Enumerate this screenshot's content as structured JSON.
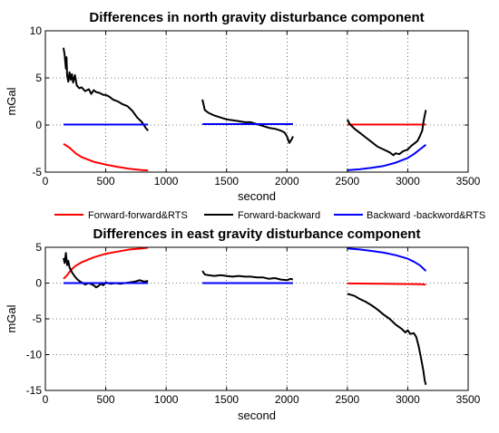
{
  "chart_data": [
    {
      "type": "line",
      "title": "Differences in north gravity disturbance component",
      "xlabel": "second",
      "ylabel": "mGal",
      "xlim": [
        0,
        3500
      ],
      "ylim": [
        -5,
        10
      ],
      "xticks": [
        0,
        500,
        1000,
        1500,
        2000,
        2500,
        3000,
        3500
      ],
      "yticks": [
        -5,
        0,
        5,
        10
      ],
      "xtick_labels": [
        "0",
        "500",
        "1000",
        "1500",
        "2000",
        "2500",
        "3000",
        "3500"
      ],
      "ytick_labels": [
        "-5",
        "0",
        "5",
        "10"
      ],
      "grid": true,
      "series": [
        {
          "name": "Forward-forward&RTS",
          "color": "#ff0000",
          "segments": [
            [
              [
                150,
                -2.0
              ],
              [
                200,
                -2.4
              ],
              [
                250,
                -3.0
              ],
              [
                300,
                -3.4
              ],
              [
                400,
                -3.9
              ],
              [
                500,
                -4.2
              ],
              [
                600,
                -4.45
              ],
              [
                700,
                -4.65
              ],
              [
                800,
                -4.78
              ],
              [
                850,
                -4.82
              ]
            ],
            [
              [
                2500,
                0.05
              ],
              [
                2800,
                0.05
              ],
              [
                3100,
                0.05
              ],
              [
                3150,
                0.05
              ]
            ]
          ]
        },
        {
          "name": "Forward-backward",
          "color": "#000000",
          "segments": [
            [
              [
                150,
                8.2
              ],
              [
                160,
                7.4
              ],
              [
                170,
                6.0
              ],
              [
                175,
                7.2
              ],
              [
                180,
                5.2
              ],
              [
                190,
                4.6
              ],
              [
                200,
                5.6
              ],
              [
                210,
                4.8
              ],
              [
                220,
                5.4
              ],
              [
                230,
                4.5
              ],
              [
                245,
                5.3
              ],
              [
                260,
                4.2
              ],
              [
                280,
                3.9
              ],
              [
                300,
                4.0
              ],
              [
                330,
                3.6
              ],
              [
                360,
                3.8
              ],
              [
                380,
                3.3
              ],
              [
                400,
                3.7
              ],
              [
                420,
                3.5
              ],
              [
                450,
                3.4
              ],
              [
                480,
                3.2
              ],
              [
                500,
                3.2
              ],
              [
                530,
                3.0
              ],
              [
                560,
                2.7
              ],
              [
                600,
                2.5
              ],
              [
                640,
                2.2
              ],
              [
                680,
                2.0
              ],
              [
                720,
                1.5
              ],
              [
                760,
                0.8
              ],
              [
                800,
                0.3
              ],
              [
                830,
                -0.3
              ],
              [
                850,
                -0.6
              ]
            ],
            [
              [
                1300,
                2.7
              ],
              [
                1320,
                1.6
              ],
              [
                1350,
                1.3
              ],
              [
                1400,
                1.0
              ],
              [
                1450,
                0.8
              ],
              [
                1500,
                0.6
              ],
              [
                1550,
                0.5
              ],
              [
                1600,
                0.4
              ],
              [
                1650,
                0.3
              ],
              [
                1700,
                0.3
              ],
              [
                1750,
                0.1
              ],
              [
                1800,
                -0.1
              ],
              [
                1850,
                -0.3
              ],
              [
                1900,
                -0.4
              ],
              [
                1950,
                -0.6
              ],
              [
                1980,
                -0.8
              ],
              [
                2000,
                -1.2
              ],
              [
                2020,
                -1.9
              ],
              [
                2040,
                -1.5
              ],
              [
                2050,
                -1.2
              ]
            ],
            [
              [
                2500,
                0.6
              ],
              [
                2520,
                0.1
              ],
              [
                2560,
                -0.4
              ],
              [
                2600,
                -0.8
              ],
              [
                2650,
                -1.3
              ],
              [
                2700,
                -1.8
              ],
              [
                2750,
                -2.3
              ],
              [
                2800,
                -2.6
              ],
              [
                2850,
                -2.9
              ],
              [
                2880,
                -3.2
              ],
              [
                2900,
                -3.0
              ],
              [
                2930,
                -3.1
              ],
              [
                2960,
                -2.8
              ],
              [
                3000,
                -2.6
              ],
              [
                3030,
                -2.2
              ],
              [
                3060,
                -1.9
              ],
              [
                3080,
                -1.7
              ],
              [
                3100,
                -1.2
              ],
              [
                3120,
                -0.6
              ],
              [
                3130,
                0.3
              ],
              [
                3140,
                1.0
              ],
              [
                3150,
                1.6
              ]
            ]
          ]
        },
        {
          "name": "Backward -backword&RTS",
          "color": "#0000ff",
          "segments": [
            [
              [
                150,
                0.05
              ],
              [
                500,
                0.05
              ],
              [
                850,
                0.05
              ]
            ],
            [
              [
                1300,
                0.1
              ],
              [
                1700,
                0.1
              ],
              [
                2050,
                0.1
              ]
            ],
            [
              [
                2500,
                -4.8
              ],
              [
                2600,
                -4.7
              ],
              [
                2700,
                -4.55
              ],
              [
                2800,
                -4.35
              ],
              [
                2900,
                -4.0
              ],
              [
                3000,
                -3.5
              ],
              [
                3050,
                -3.1
              ],
              [
                3100,
                -2.6
              ],
              [
                3150,
                -2.1
              ]
            ]
          ]
        }
      ]
    },
    {
      "type": "line",
      "title": "Differences in east gravity disturbance component",
      "xlabel": "second",
      "ylabel": "mGal",
      "xlim": [
        0,
        3500
      ],
      "ylim": [
        -15,
        5
      ],
      "xticks": [
        0,
        500,
        1000,
        1500,
        2000,
        2500,
        3000,
        3500
      ],
      "yticks": [
        -15,
        -10,
        -5,
        0,
        5
      ],
      "xtick_labels": [
        "0",
        "500",
        "1000",
        "1500",
        "2000",
        "2500",
        "3000",
        "3500"
      ],
      "ytick_labels": [
        "-15",
        "-10",
        "-5",
        "0",
        "5"
      ],
      "grid": true,
      "series": [
        {
          "name": "Forward-forward&RTS",
          "color": "#ff0000",
          "segments": [
            [
              [
                150,
                0.6
              ],
              [
                180,
                1.1
              ],
              [
                210,
                1.8
              ],
              [
                250,
                2.4
              ],
              [
                300,
                2.9
              ],
              [
                400,
                3.6
              ],
              [
                500,
                4.1
              ],
              [
                600,
                4.4
              ],
              [
                700,
                4.7
              ],
              [
                800,
                4.85
              ],
              [
                850,
                4.95
              ]
            ],
            [
              [
                2500,
                -0.05
              ],
              [
                2800,
                -0.1
              ],
              [
                3100,
                -0.15
              ],
              [
                3150,
                -0.2
              ]
            ]
          ]
        },
        {
          "name": "Forward-backward",
          "color": "#000000",
          "segments": [
            [
              [
                150,
                3.5
              ],
              [
                160,
                2.8
              ],
              [
                170,
                4.2
              ],
              [
                180,
                2.5
              ],
              [
                190,
                3.1
              ],
              [
                200,
                2.2
              ],
              [
                220,
                1.5
              ],
              [
                240,
                1.0
              ],
              [
                260,
                0.6
              ],
              [
                280,
                0.3
              ],
              [
                300,
                0.1
              ],
              [
                330,
                -0.2
              ],
              [
                360,
                0.0
              ],
              [
                400,
                -0.3
              ],
              [
                420,
                -0.6
              ],
              [
                440,
                -0.4
              ],
              [
                460,
                -0.1
              ],
              [
                480,
                -0.3
              ],
              [
                500,
                0.1
              ],
              [
                540,
                -0.1
              ],
              [
                580,
                0.0
              ],
              [
                620,
                -0.1
              ],
              [
                660,
                0.0
              ],
              [
                700,
                0.1
              ],
              [
                740,
                0.2
              ],
              [
                780,
                0.4
              ],
              [
                820,
                0.2
              ],
              [
                850,
                0.3
              ]
            ],
            [
              [
                1300,
                1.7
              ],
              [
                1320,
                1.2
              ],
              [
                1350,
                1.1
              ],
              [
                1400,
                1.0
              ],
              [
                1450,
                1.1
              ],
              [
                1500,
                1.0
              ],
              [
                1550,
                0.9
              ],
              [
                1600,
                1.0
              ],
              [
                1650,
                0.9
              ],
              [
                1700,
                0.9
              ],
              [
                1750,
                0.8
              ],
              [
                1800,
                0.8
              ],
              [
                1850,
                0.6
              ],
              [
                1900,
                0.7
              ],
              [
                1950,
                0.5
              ],
              [
                2000,
                0.4
              ],
              [
                2030,
                0.6
              ],
              [
                2050,
                0.5
              ]
            ],
            [
              [
                2500,
                -1.5
              ],
              [
                2520,
                -1.6
              ],
              [
                2560,
                -1.8
              ],
              [
                2600,
                -2.2
              ],
              [
                2650,
                -2.6
              ],
              [
                2700,
                -3.1
              ],
              [
                2750,
                -3.7
              ],
              [
                2800,
                -4.4
              ],
              [
                2850,
                -5.0
              ],
              [
                2900,
                -5.8
              ],
              [
                2950,
                -6.4
              ],
              [
                2980,
                -6.9
              ],
              [
                3000,
                -6.6
              ],
              [
                3020,
                -7.1
              ],
              [
                3050,
                -7.0
              ],
              [
                3070,
                -7.5
              ],
              [
                3090,
                -8.8
              ],
              [
                3110,
                -10.5
              ],
              [
                3130,
                -12.3
              ],
              [
                3140,
                -13.6
              ],
              [
                3150,
                -14.2
              ]
            ]
          ]
        },
        {
          "name": "Backward -backword&RTS",
          "color": "#0000ff",
          "segments": [
            [
              [
                150,
                0.0
              ],
              [
                500,
                0.0
              ],
              [
                850,
                0.0
              ]
            ],
            [
              [
                1300,
                0.0
              ],
              [
                1700,
                0.0
              ],
              [
                2050,
                0.0
              ]
            ],
            [
              [
                2500,
                4.85
              ],
              [
                2600,
                4.7
              ],
              [
                2700,
                4.5
              ],
              [
                2800,
                4.25
              ],
              [
                2900,
                3.9
              ],
              [
                3000,
                3.4
              ],
              [
                3050,
                3.0
              ],
              [
                3100,
                2.5
              ],
              [
                3150,
                1.7
              ]
            ]
          ]
        }
      ]
    }
  ],
  "legend": {
    "placement": "between-panels",
    "entries": [
      {
        "label": "Forward-forward&RTS",
        "color": "#ff0000"
      },
      {
        "label": "Forward-backward",
        "color": "#000000"
      },
      {
        "label": "Backward -backword&RTS",
        "color": "#0000ff"
      }
    ]
  }
}
